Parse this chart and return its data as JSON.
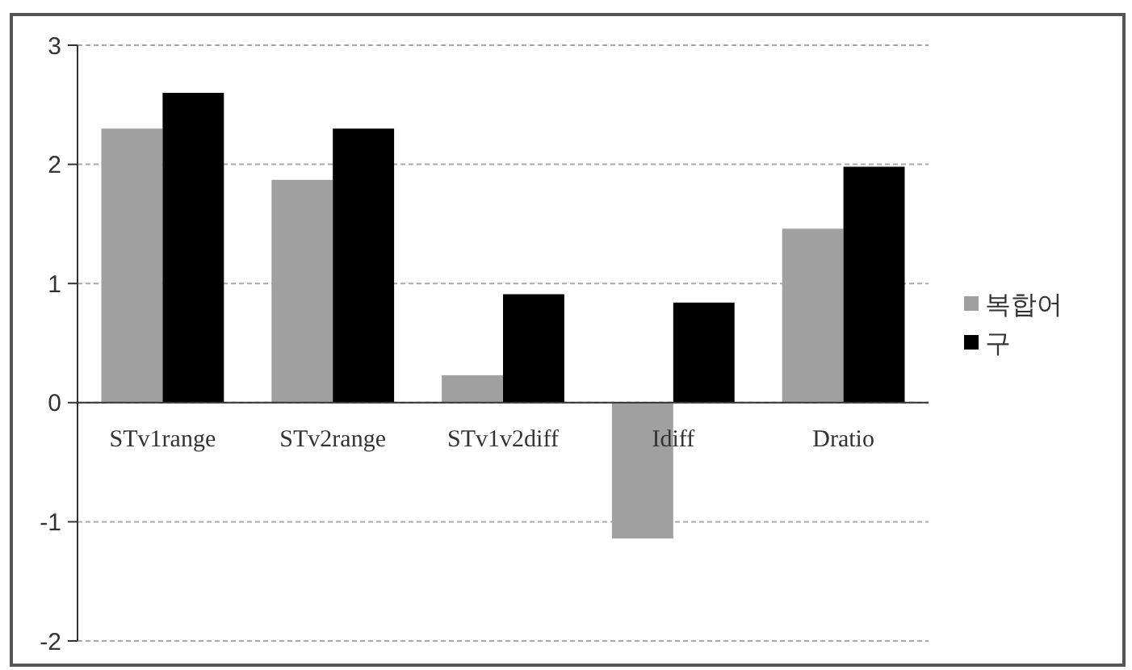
{
  "chart_data": {
    "type": "bar",
    "categories": [
      "STv1range",
      "STv2range",
      "STv1v2diff",
      "Idiff",
      "Dratio"
    ],
    "series": [
      {
        "name": "복합어",
        "color": "#a0a0a0",
        "values": [
          2.3,
          1.87,
          0.23,
          -1.14,
          1.46
        ]
      },
      {
        "name": "구",
        "color": "#000000",
        "values": [
          2.6,
          2.3,
          0.91,
          0.84,
          1.98
        ]
      }
    ],
    "ylim": [
      -2,
      3
    ],
    "yticks": [
      -2,
      -1,
      0,
      1,
      2,
      3
    ],
    "grid": "y",
    "legend": "right"
  }
}
